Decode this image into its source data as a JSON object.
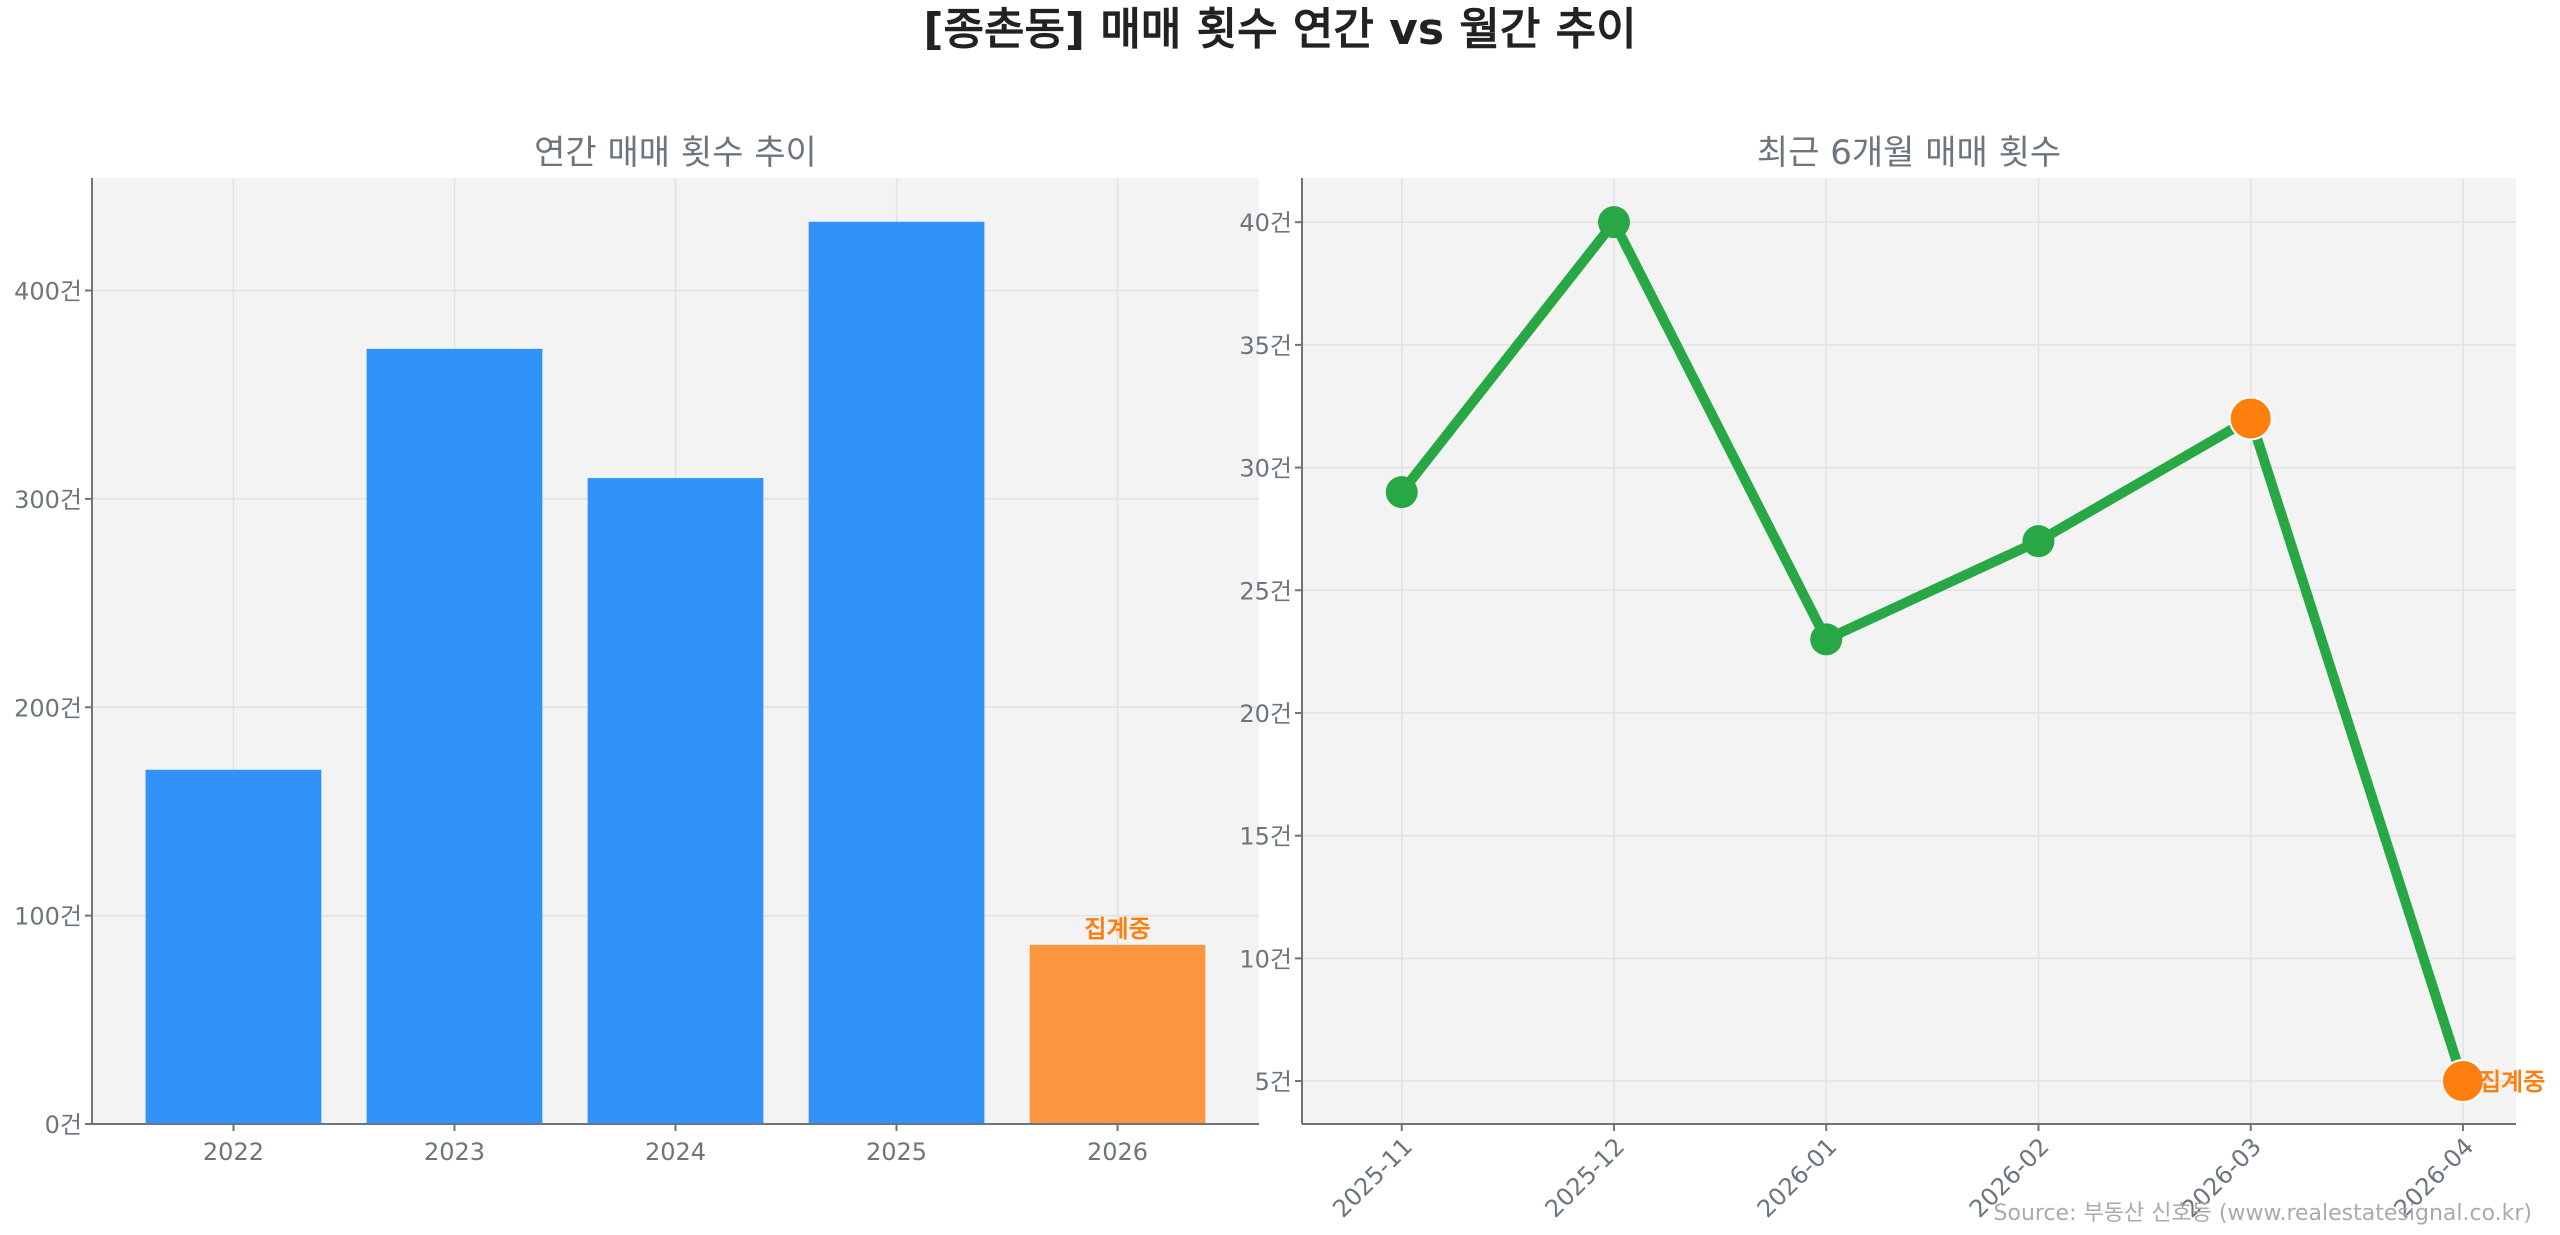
{
  "title": "[종촌동] 매매 횟수 연간 vs 월간 추이",
  "source": "Source: 부동산 신호등 (www.realestatesignal.co.kr)",
  "colors": {
    "bar": "#3192fa",
    "bar_partial": "#fa9640",
    "line": "#28a745",
    "marker_highlight": "#ff7f0e",
    "plot_bg": "#f3f3f3"
  },
  "chart_data": [
    {
      "type": "bar",
      "title": "연간 매매 횟수 추이",
      "categories": [
        "2022",
        "2023",
        "2024",
        "2025",
        "2026"
      ],
      "values": [
        170,
        372,
        310,
        433,
        86
      ],
      "ylim": [
        0,
        454
      ],
      "yticks": [
        0,
        100,
        200,
        300,
        400
      ],
      "ytick_suffix": "건",
      "grid": true,
      "annotations": [
        {
          "category": "2026",
          "text": "집계중"
        }
      ]
    },
    {
      "type": "line",
      "title": "최근 6개월 매매 횟수",
      "categories": [
        "2025-11",
        "2025-12",
        "2026-01",
        "2026-02",
        "2026-03",
        "2026-04"
      ],
      "values": [
        29,
        40,
        23,
        27,
        32,
        5
      ],
      "highlighted": [
        "2026-03",
        "2026-04"
      ],
      "ylim": [
        3.25,
        41.8
      ],
      "yticks": [
        5,
        10,
        15,
        20,
        25,
        30,
        35,
        40
      ],
      "ytick_suffix": "건",
      "grid": true,
      "annotations": [
        {
          "category": "2026-04",
          "text": "집계중"
        }
      ]
    }
  ]
}
